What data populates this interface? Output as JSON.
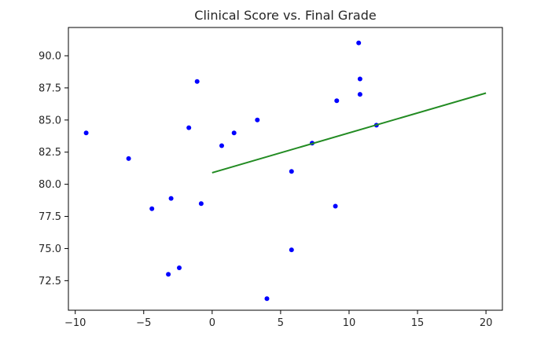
{
  "chart_data": {
    "type": "scatter",
    "title": "Clinical Score vs. Final Grade",
    "xlabel": "",
    "ylabel": "",
    "xlim": [
      -10.5,
      21.2
    ],
    "ylim": [
      70.2,
      92.2
    ],
    "xticks": [
      -10,
      -5,
      0,
      5,
      10,
      15,
      20
    ],
    "xtick_labels": [
      "−10",
      "−5",
      "0",
      "5",
      "10",
      "15",
      "20"
    ],
    "yticks": [
      72.5,
      75.0,
      77.5,
      80.0,
      82.5,
      85.0,
      87.5,
      90.0
    ],
    "ytick_labels": [
      "72.5",
      "75.0",
      "77.5",
      "80.0",
      "82.5",
      "85.0",
      "87.5",
      "90.0"
    ],
    "grid": false,
    "series": [
      {
        "kind": "points",
        "color": "#0000ff",
        "points": [
          [
            -9.2,
            84.0
          ],
          [
            -6.1,
            82.0
          ],
          [
            -4.4,
            78.1
          ],
          [
            -3.2,
            73.0
          ],
          [
            -3.0,
            78.9
          ],
          [
            -2.4,
            73.5
          ],
          [
            -1.7,
            84.4
          ],
          [
            -1.1,
            88.0
          ],
          [
            -0.8,
            78.5
          ],
          [
            0.7,
            83.0
          ],
          [
            1.6,
            84.0
          ],
          [
            3.3,
            85.0
          ],
          [
            4.0,
            71.1
          ],
          [
            5.8,
            81.0
          ],
          [
            5.8,
            74.9
          ],
          [
            7.3,
            83.2
          ],
          [
            9.0,
            78.3
          ],
          [
            9.1,
            86.5
          ],
          [
            10.7,
            91.0
          ],
          [
            10.8,
            88.2
          ],
          [
            10.8,
            87.0
          ],
          [
            12.0,
            84.6
          ]
        ]
      },
      {
        "kind": "line",
        "color": "#228b22",
        "points": [
          [
            0,
            80.9
          ],
          [
            20,
            87.1
          ]
        ]
      }
    ]
  }
}
